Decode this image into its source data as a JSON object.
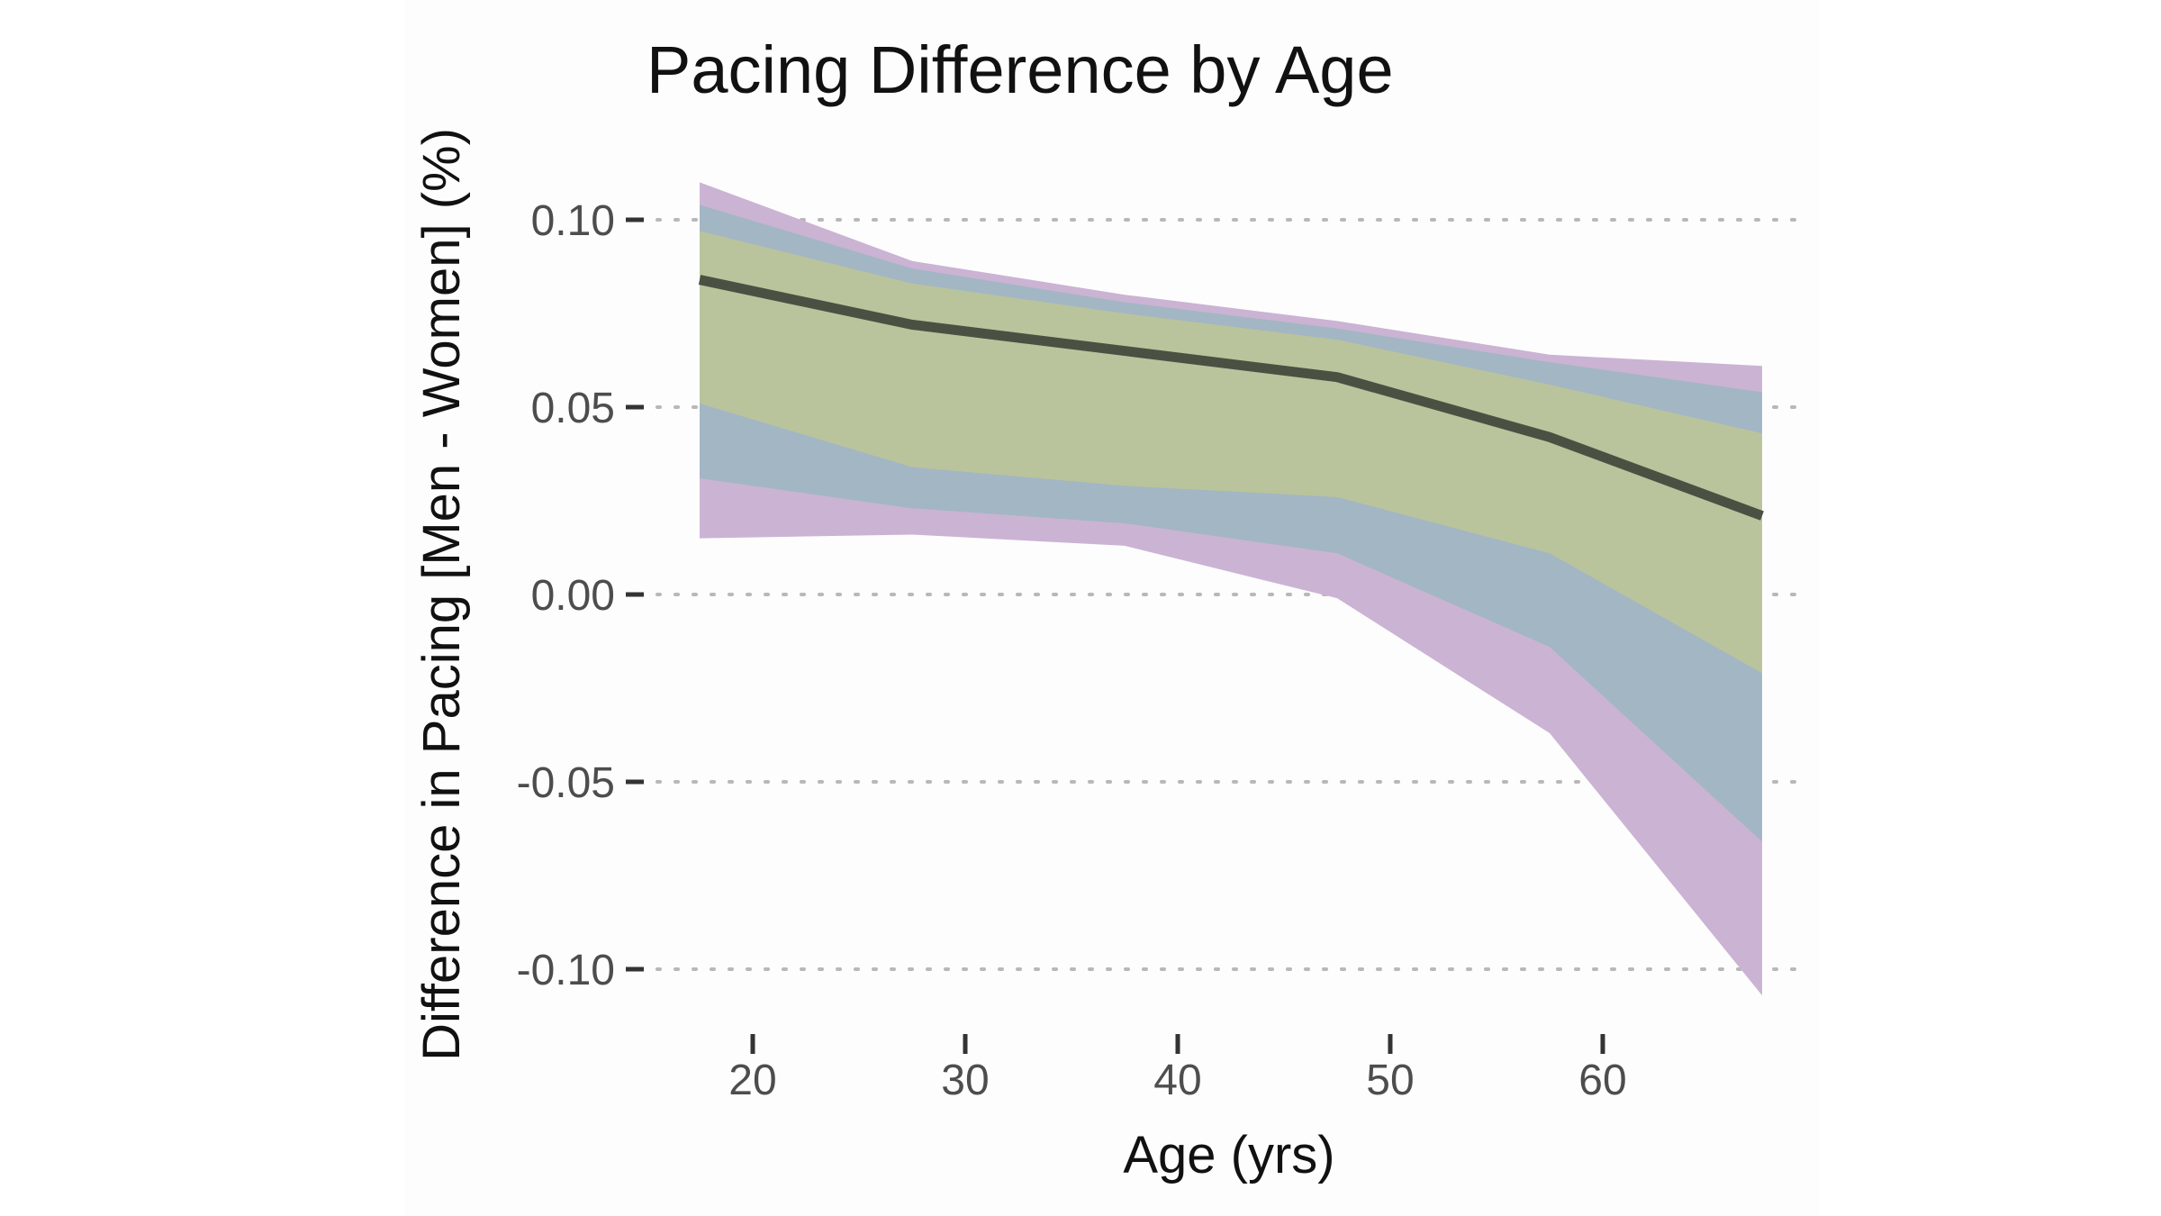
{
  "chart_data": {
    "type": "line",
    "title": "Pacing Difference by Age",
    "xlabel": "Age (yrs)",
    "ylabel": "Difference in Pacing [Men - Women] (%)",
    "xlim": [
      15,
      70
    ],
    "ylim": [
      -0.11,
      0.11
    ],
    "x_ticks": [
      20,
      30,
      40,
      50,
      60
    ],
    "x_tick_labels": [
      "20",
      "30",
      "40",
      "50",
      "60"
    ],
    "y_ticks": [
      0.1,
      0.05,
      0.0,
      -0.05,
      -0.1
    ],
    "y_tick_labels": [
      "0.10",
      "0.05",
      "0.00",
      "-0.05",
      "-0.10"
    ],
    "grid": "horizontal dotted",
    "x": [
      17.5,
      27.5,
      37.5,
      47.5,
      57.5,
      67.5
    ],
    "series": [
      {
        "role": "line",
        "values": [
          0.084,
          0.072,
          0.065,
          0.058,
          0.042,
          0.021
        ]
      }
    ],
    "bands": [
      {
        "role": "outer",
        "color": "#cbb3d4",
        "lower": [
          0.015,
          0.016,
          0.013,
          -0.001,
          -0.037,
          -0.107
        ],
        "upper": [
          0.11,
          0.089,
          0.08,
          0.073,
          0.064,
          0.061
        ]
      },
      {
        "role": "middle",
        "color": "#a3b6c4",
        "lower": [
          0.031,
          0.023,
          0.019,
          0.011,
          -0.014,
          -0.066
        ],
        "upper": [
          0.104,
          0.087,
          0.078,
          0.071,
          0.062,
          0.054
        ]
      },
      {
        "role": "inner",
        "color": "#b9c49c",
        "lower": [
          0.051,
          0.034,
          0.029,
          0.026,
          0.011,
          -0.021
        ],
        "upper": [
          0.097,
          0.083,
          0.075,
          0.068,
          0.056,
          0.043
        ]
      }
    ],
    "colors": {
      "line": "#4a5143",
      "grid": "#b8b8b8",
      "tick": "#333333"
    }
  }
}
